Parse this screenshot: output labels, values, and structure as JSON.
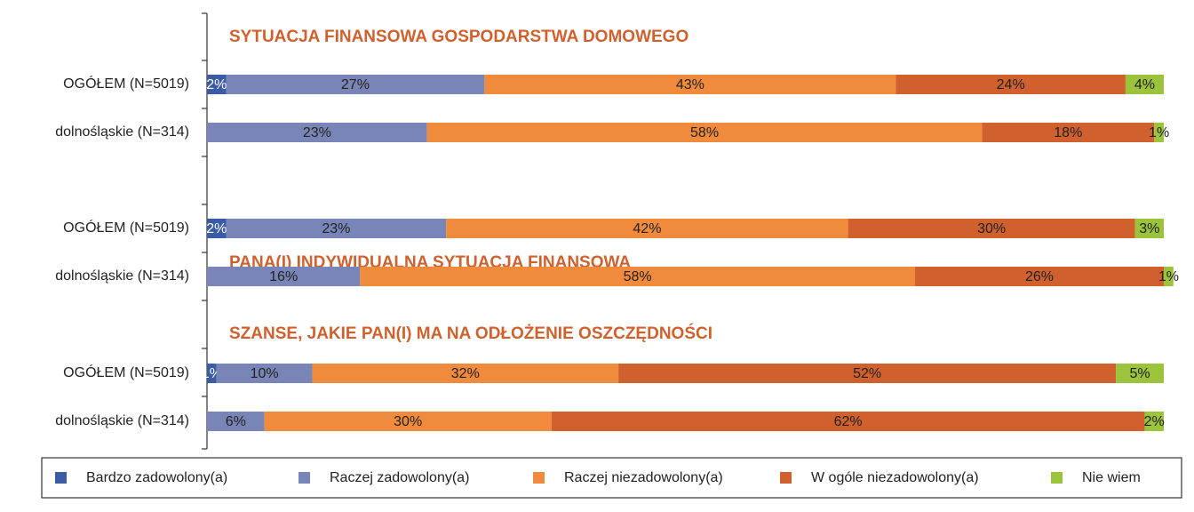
{
  "chart_data": {
    "type": "stacked-bar",
    "orientation": "horizontal",
    "group_titles": [
      "SYTUACJA FINANSOWA GOSPODARSTWA DOMOWEGO",
      "PANA(I) INDYWIDUALNA SYTUACJA FINANSOWA",
      "SZANSE, JAKIE PAN(I) MA NA ODŁOŻENIE OSZCZĘDNOŚCI"
    ],
    "categories": [
      "OGÓŁEM (N=5019)",
      "dolnośląskie (N=314)",
      "OGÓŁEM (N=5019)",
      "dolnośląskie (N=314)",
      "OGÓŁEM (N=5019)",
      "dolnośląskie (N=314)"
    ],
    "xlim": [
      0,
      100
    ],
    "series": [
      {
        "name": "Bardzo zadowolony(a)",
        "color": "#3b5ba5",
        "label_color": "#ffffff",
        "values": [
          2,
          0,
          2,
          0,
          1,
          0
        ],
        "value_labels": [
          "2%",
          null,
          "2%",
          null,
          "1%",
          null
        ]
      },
      {
        "name": "Raczej zadowolony(a)",
        "color": "#7985b6",
        "label_color": "#222222",
        "values": [
          27,
          23,
          23,
          16,
          10,
          6
        ],
        "value_labels": [
          "27%",
          "23%",
          "23%",
          "16%",
          "10%",
          "6%"
        ]
      },
      {
        "name": "Raczej niezadowolony(a)",
        "color": "#f08a3c",
        "label_color": "#222222",
        "values": [
          43,
          58,
          42,
          58,
          32,
          30
        ],
        "value_labels": [
          "43%",
          "58%",
          "42%",
          "58%",
          "32%",
          "30%"
        ]
      },
      {
        "name": "W ogóle niezadowolony(a)",
        "color": "#d0602e",
        "label_color": "#222222",
        "values": [
          24,
          18,
          30,
          26,
          52,
          62
        ],
        "value_labels": [
          "24%",
          "18%",
          "30%",
          "26%",
          "52%",
          "62%"
        ]
      },
      {
        "name": "Nie wiem",
        "color": "#9bc33b",
        "label_color": "#222222",
        "values": [
          4,
          1,
          3,
          1,
          5,
          2
        ],
        "value_labels": [
          "4%",
          "1%",
          "3%",
          "1%",
          "5%",
          "2%"
        ]
      }
    ],
    "legend": "bottom"
  }
}
